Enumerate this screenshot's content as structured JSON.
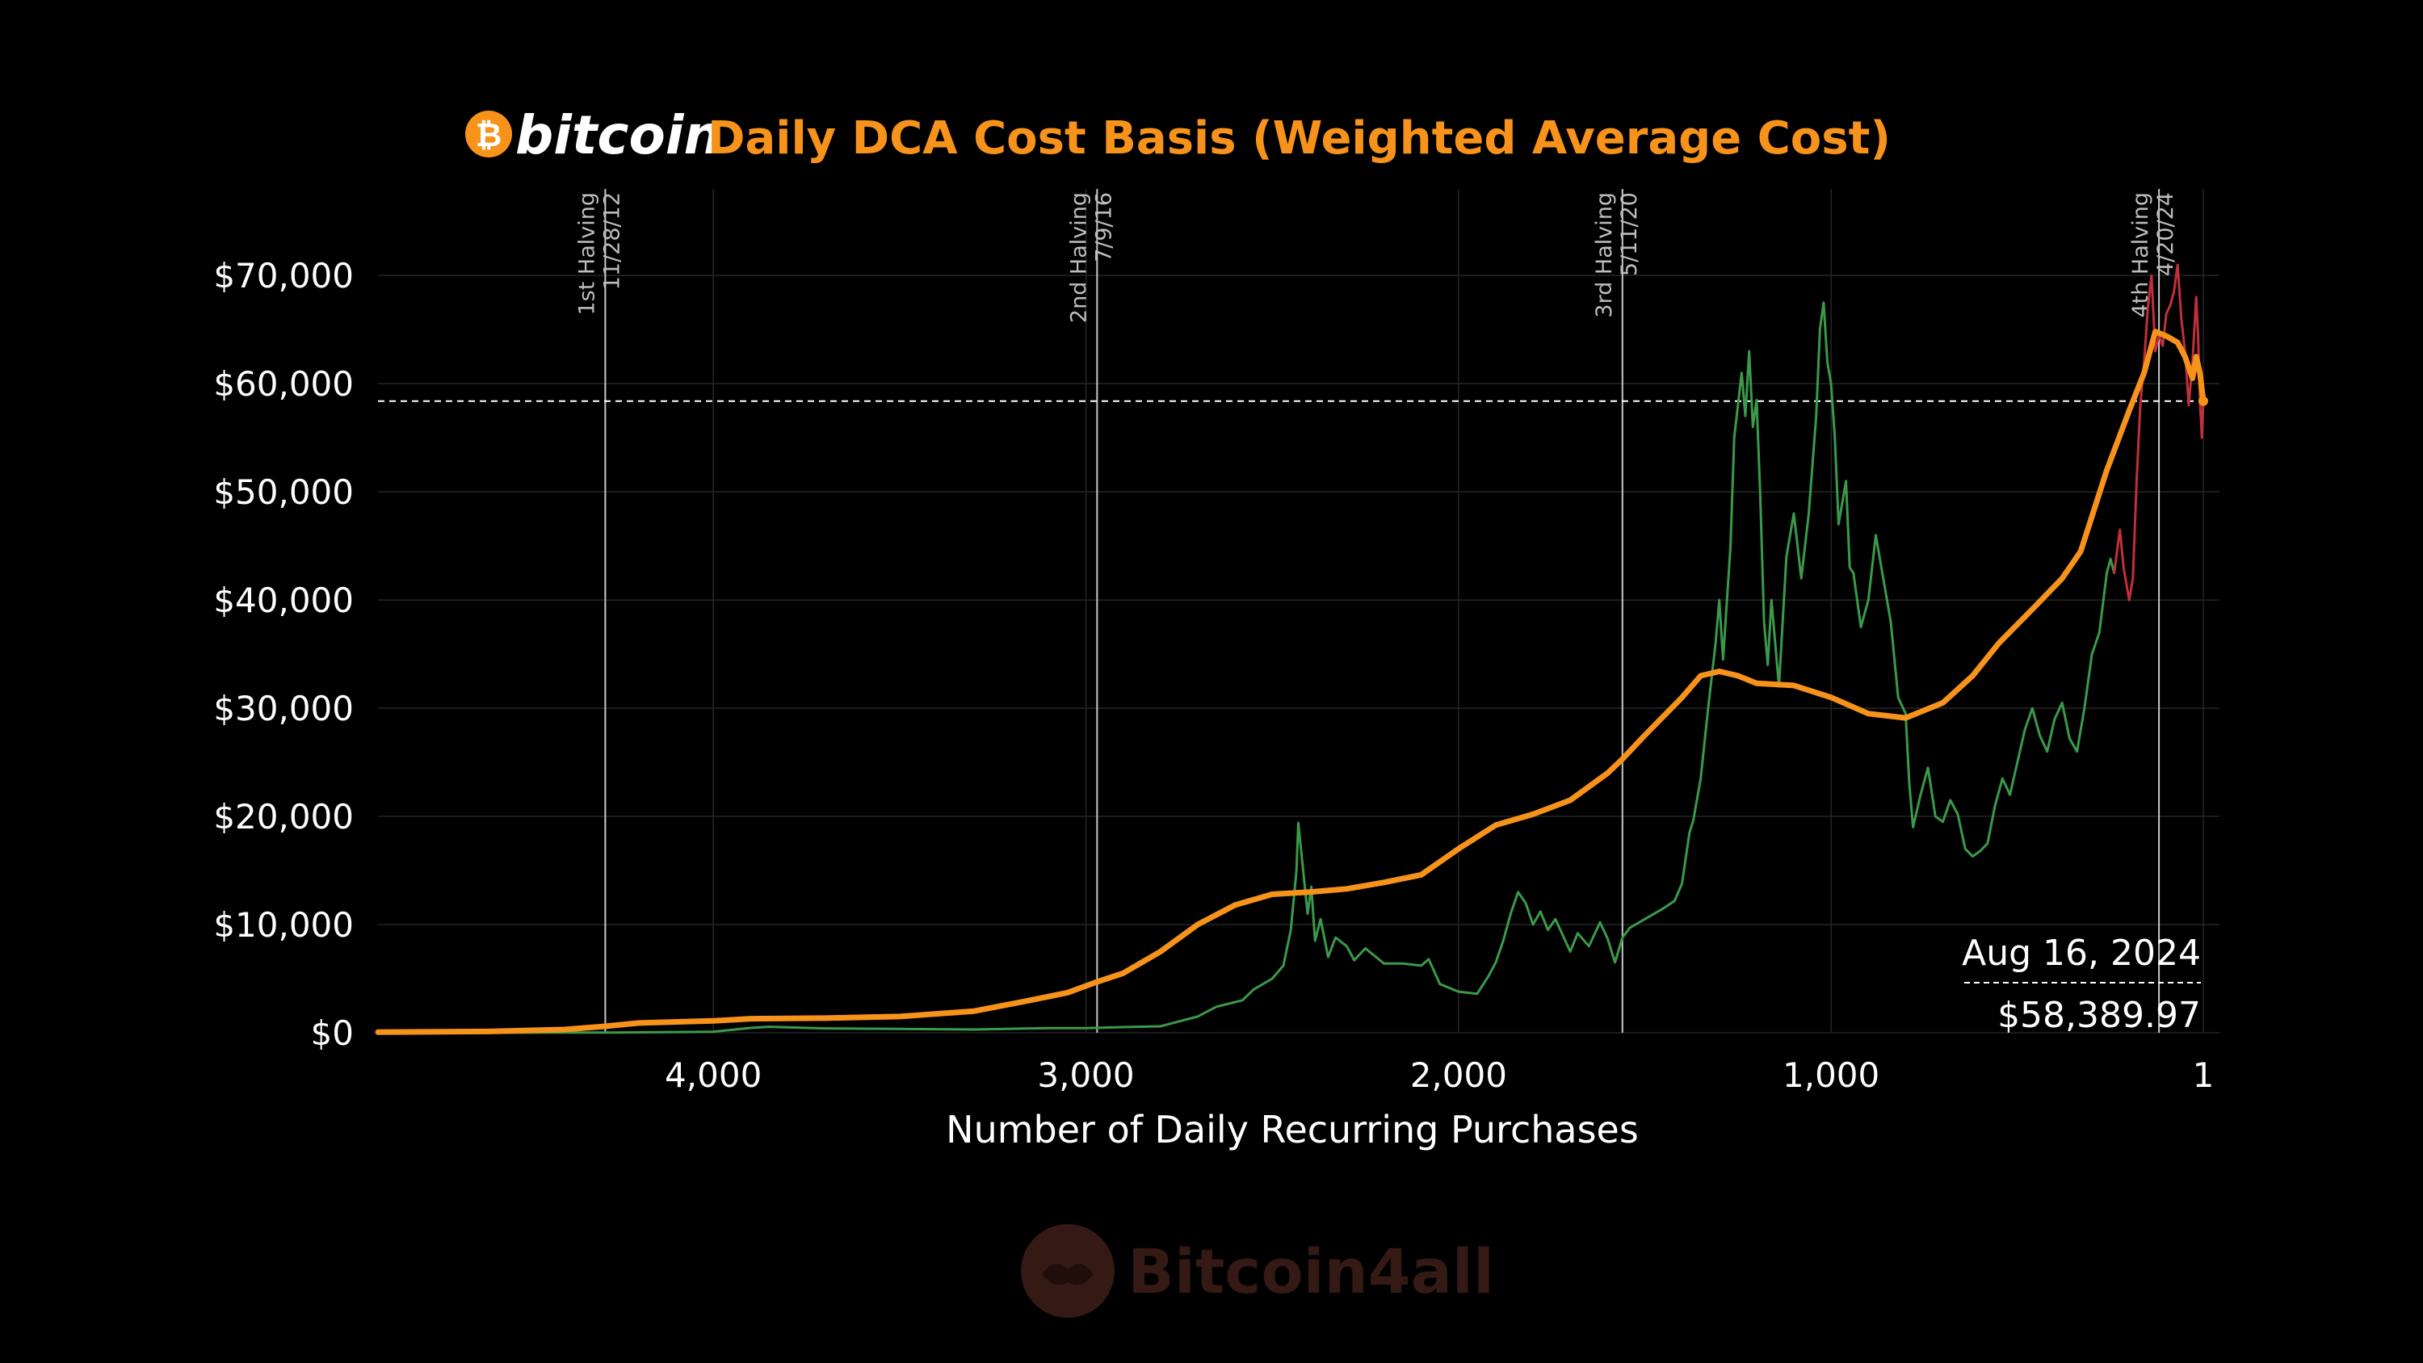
{
  "title": {
    "brand": "bitcoin",
    "brand_icon": "bitcoin-coin-icon",
    "text": "Daily DCA Cost Basis (Weighted Average Cost)"
  },
  "watermark": {
    "text": "Bitcoin4all",
    "icon": "handshake-icon"
  },
  "colors": {
    "background": "#000000",
    "accent": "#f7931a",
    "price_up": "#3a9a4a",
    "price_recent": "#c0303a",
    "grid": "#2a2a2a"
  },
  "chart_data": {
    "type": "line",
    "title": "Daily DCA Cost Basis (Weighted Average Cost)",
    "xlabel": "Number of Daily Recurring Purchases",
    "ylabel": "",
    "x_reversed": true,
    "xlim": [
      4900,
      1
    ],
    "ylim": [
      0,
      78000
    ],
    "grid": true,
    "x_ticks": [
      {
        "value": 4000,
        "label": "4,000"
      },
      {
        "value": 3000,
        "label": "3,000"
      },
      {
        "value": 2000,
        "label": "2,000"
      },
      {
        "value": 1000,
        "label": "1,000"
      },
      {
        "value": 1,
        "label": "1"
      }
    ],
    "y_ticks": [
      {
        "value": 0,
        "label": "$0"
      },
      {
        "value": 10000,
        "label": "$10,000"
      },
      {
        "value": 20000,
        "label": "$20,000"
      },
      {
        "value": 30000,
        "label": "$30,000"
      },
      {
        "value": 40000,
        "label": "$40,000"
      },
      {
        "value": 50000,
        "label": "$50,000"
      },
      {
        "value": 60000,
        "label": "$60,000"
      },
      {
        "value": 70000,
        "label": "$70,000"
      }
    ],
    "vlines": [
      {
        "x": 4290,
        "label1": "1st Halving",
        "label2": "11/28/12"
      },
      {
        "x": 2970,
        "label1": "2nd Halving",
        "label2": "7/9/16"
      },
      {
        "x": 1560,
        "label1": "3rd Halving",
        "label2": "5/11/20"
      },
      {
        "x": 120,
        "label1": "4th Halving",
        "label2": "4/20/24"
      }
    ],
    "hline": {
      "y": 58389.97
    },
    "annotation": {
      "date": "Aug 16, 2024",
      "value": "$58,389.97"
    },
    "series": [
      {
        "key": "cost_basis",
        "values": [
          [
            4900,
            50
          ],
          [
            4600,
            120
          ],
          [
            4400,
            300
          ],
          [
            4290,
            600
          ],
          [
            4200,
            900
          ],
          [
            4000,
            1100
          ],
          [
            3900,
            1300
          ],
          [
            3700,
            1350
          ],
          [
            3500,
            1500
          ],
          [
            3300,
            2000
          ],
          [
            3150,
            3000
          ],
          [
            3050,
            3700
          ],
          [
            2970,
            4700
          ],
          [
            2900,
            5500
          ],
          [
            2800,
            7500
          ],
          [
            2700,
            10000
          ],
          [
            2600,
            11800
          ],
          [
            2500,
            12800
          ],
          [
            2400,
            13000
          ],
          [
            2300,
            13300
          ],
          [
            2200,
            13900
          ],
          [
            2100,
            14600
          ],
          [
            2000,
            17000
          ],
          [
            1900,
            19200
          ],
          [
            1800,
            20200
          ],
          [
            1700,
            21500
          ],
          [
            1600,
            24000
          ],
          [
            1560,
            25300
          ],
          [
            1500,
            27500
          ],
          [
            1400,
            31000
          ],
          [
            1350,
            33000
          ],
          [
            1300,
            33400
          ],
          [
            1250,
            33000
          ],
          [
            1200,
            32300
          ],
          [
            1100,
            32100
          ],
          [
            1000,
            31000
          ],
          [
            900,
            29500
          ],
          [
            800,
            29100
          ],
          [
            700,
            30500
          ],
          [
            620,
            33000
          ],
          [
            550,
            36000
          ],
          [
            450,
            39500
          ],
          [
            380,
            42000
          ],
          [
            330,
            44500
          ],
          [
            260,
            52000
          ],
          [
            200,
            57500
          ],
          [
            160,
            61000
          ],
          [
            130,
            64800
          ],
          [
            100,
            64400
          ],
          [
            70,
            63800
          ],
          [
            50,
            62500
          ],
          [
            30,
            60500
          ],
          [
            20,
            62500
          ],
          [
            10,
            61000
          ],
          [
            1,
            58390
          ]
        ]
      },
      {
        "key": "price",
        "values": [
          [
            4900,
            10
          ],
          [
            4400,
            12
          ],
          [
            4290,
            12
          ],
          [
            4000,
            100
          ],
          [
            3900,
            450
          ],
          [
            3850,
            550
          ],
          [
            3700,
            400
          ],
          [
            3500,
            350
          ],
          [
            3300,
            300
          ],
          [
            3100,
            430
          ],
          [
            3000,
            430
          ],
          [
            2900,
            520
          ],
          [
            2800,
            600
          ],
          [
            2700,
            1500
          ],
          [
            2650,
            2400
          ],
          [
            2580,
            3000
          ],
          [
            2550,
            4000
          ],
          [
            2500,
            5000
          ],
          [
            2470,
            6200
          ],
          [
            2450,
            9500
          ],
          [
            2435,
            15000
          ],
          [
            2430,
            19400
          ],
          [
            2420,
            16000
          ],
          [
            2405,
            11000
          ],
          [
            2395,
            13500
          ],
          [
            2385,
            8500
          ],
          [
            2370,
            10500
          ],
          [
            2350,
            7000
          ],
          [
            2330,
            8800
          ],
          [
            2300,
            8000
          ],
          [
            2280,
            6700
          ],
          [
            2250,
            7800
          ],
          [
            2200,
            6400
          ],
          [
            2150,
            6400
          ],
          [
            2100,
            6200
          ],
          [
            2080,
            6800
          ],
          [
            2050,
            4500
          ],
          [
            2000,
            3800
          ],
          [
            1950,
            3600
          ],
          [
            1920,
            5200
          ],
          [
            1900,
            6500
          ],
          [
            1880,
            8500
          ],
          [
            1860,
            11000
          ],
          [
            1840,
            13000
          ],
          [
            1820,
            12000
          ],
          [
            1800,
            10000
          ],
          [
            1780,
            11200
          ],
          [
            1760,
            9500
          ],
          [
            1740,
            10500
          ],
          [
            1700,
            7500
          ],
          [
            1680,
            9200
          ],
          [
            1650,
            8000
          ],
          [
            1620,
            10200
          ],
          [
            1600,
            8700
          ],
          [
            1580,
            6500
          ],
          [
            1560,
            8800
          ],
          [
            1540,
            9700
          ],
          [
            1500,
            10500
          ],
          [
            1450,
            11500
          ],
          [
            1420,
            12200
          ],
          [
            1400,
            13800
          ],
          [
            1380,
            18500
          ],
          [
            1370,
            19600
          ],
          [
            1350,
            23500
          ],
          [
            1330,
            30000
          ],
          [
            1310,
            36000
          ],
          [
            1300,
            40000
          ],
          [
            1290,
            34500
          ],
          [
            1270,
            45000
          ],
          [
            1260,
            55000
          ],
          [
            1250,
            58000
          ],
          [
            1240,
            61000
          ],
          [
            1230,
            57000
          ],
          [
            1220,
            63000
          ],
          [
            1210,
            56000
          ],
          [
            1200,
            58500
          ],
          [
            1190,
            49500
          ],
          [
            1180,
            38000
          ],
          [
            1170,
            34000
          ],
          [
            1160,
            40000
          ],
          [
            1140,
            32000
          ],
          [
            1120,
            44000
          ],
          [
            1100,
            48000
          ],
          [
            1080,
            42000
          ],
          [
            1060,
            48000
          ],
          [
            1040,
            57000
          ],
          [
            1030,
            65000
          ],
          [
            1020,
            67500
          ],
          [
            1010,
            62000
          ],
          [
            1000,
            60000
          ],
          [
            990,
            55000
          ],
          [
            980,
            47000
          ],
          [
            960,
            51000
          ],
          [
            950,
            43000
          ],
          [
            940,
            42500
          ],
          [
            920,
            37500
          ],
          [
            900,
            40000
          ],
          [
            880,
            46000
          ],
          [
            860,
            42000
          ],
          [
            840,
            38000
          ],
          [
            820,
            31000
          ],
          [
            800,
            29500
          ],
          [
            790,
            23000
          ],
          [
            780,
            19000
          ],
          [
            760,
            22000
          ],
          [
            740,
            24500
          ],
          [
            720,
            20000
          ],
          [
            700,
            19500
          ],
          [
            680,
            21500
          ],
          [
            660,
            20200
          ],
          [
            640,
            17000
          ],
          [
            620,
            16300
          ],
          [
            600,
            16800
          ],
          [
            580,
            17500
          ],
          [
            560,
            21000
          ],
          [
            540,
            23500
          ],
          [
            520,
            22000
          ],
          [
            500,
            25000
          ],
          [
            480,
            28000
          ],
          [
            460,
            30000
          ],
          [
            440,
            27500
          ],
          [
            420,
            26000
          ],
          [
            400,
            29000
          ],
          [
            380,
            30500
          ],
          [
            360,
            27200
          ],
          [
            340,
            26000
          ],
          [
            320,
            30000
          ],
          [
            300,
            35000
          ],
          [
            280,
            37000
          ],
          [
            260,
            42500
          ],
          [
            250,
            43800
          ],
          [
            240,
            42500
          ]
        ]
      },
      {
        "key": "price_recent",
        "values": [
          [
            240,
            42500
          ],
          [
            225,
            46500
          ],
          [
            215,
            43000
          ],
          [
            200,
            40000
          ],
          [
            190,
            42000
          ],
          [
            180,
            51000
          ],
          [
            170,
            58000
          ],
          [
            160,
            62000
          ],
          [
            150,
            67000
          ],
          [
            140,
            70000
          ],
          [
            130,
            63000
          ],
          [
            120,
            64500
          ],
          [
            110,
            63500
          ],
          [
            100,
            66500
          ],
          [
            90,
            67200
          ],
          [
            80,
            68500
          ],
          [
            70,
            71000
          ],
          [
            60,
            66000
          ],
          [
            50,
            63000
          ],
          [
            40,
            58000
          ],
          [
            30,
            62000
          ],
          [
            20,
            68000
          ],
          [
            15,
            64500
          ],
          [
            10,
            58500
          ],
          [
            5,
            55000
          ],
          [
            1,
            58400
          ]
        ]
      }
    ]
  }
}
